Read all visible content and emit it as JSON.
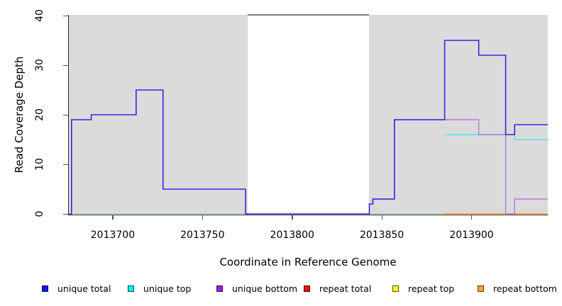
{
  "chart_data": {
    "type": "line",
    "subtype": "step-coverage-plot",
    "title": "",
    "xlabel": "Coordinate in Reference Genome",
    "ylabel": "Read Coverage Depth",
    "xlim": [
      2013675.5,
      2013942.5
    ],
    "ylim": [
      0,
      40
    ],
    "x_ticks": [
      2013700,
      2013750,
      2013800,
      2013850,
      2013900
    ],
    "y_ticks": [
      0,
      10,
      20,
      30,
      40
    ],
    "grid": "off",
    "shaded_regions": [
      {
        "from": 2013675.5,
        "to": 2013775,
        "color": "#DBDBDB"
      },
      {
        "from": 2013843,
        "to": 2013942.5,
        "color": "#DBDBDB"
      }
    ],
    "gap_top_line": {
      "from": 2013775,
      "to": 2013843,
      "at_y": 40,
      "color": "#7A7A7A"
    },
    "series": [
      {
        "name": "baseline-overlap",
        "color": "#8FD98F",
        "width": 1.2,
        "steps": [
          [
            2013675.5,
            0
          ],
          [
            2013885,
            0
          ]
        ]
      },
      {
        "name": "repeat bottom",
        "color": "#FFA004",
        "width": 1.4,
        "steps": [
          [
            2013885,
            0
          ],
          [
            2013942.5,
            0
          ]
        ]
      },
      {
        "name": "unique top",
        "color": "#55E1E8",
        "width": 1.4,
        "steps": [
          [
            2013885,
            16
          ],
          [
            2013924,
            15
          ],
          [
            2013942.5,
            15
          ]
        ]
      },
      {
        "name": "unique bottom",
        "color": "#B678DE",
        "width": 1.4,
        "steps": [
          [
            2013843,
            2
          ],
          [
            2013845,
            3
          ],
          [
            2013857,
            19
          ],
          [
            2013904,
            16
          ],
          [
            2013919,
            0
          ],
          [
            2013924,
            3
          ],
          [
            2013942.5,
            3
          ]
        ]
      },
      {
        "name": "unique total",
        "color": "#3628E0",
        "width": 1.6,
        "steps": [
          [
            2013675.5,
            0
          ],
          [
            2013677,
            19
          ],
          [
            2013688,
            20
          ],
          [
            2013713,
            25
          ],
          [
            2013728,
            5
          ],
          [
            2013774,
            0
          ],
          [
            2013843,
            2
          ],
          [
            2013845,
            3
          ],
          [
            2013857,
            19
          ],
          [
            2013885,
            35
          ],
          [
            2013904,
            32
          ],
          [
            2013919,
            16
          ],
          [
            2013924,
            18
          ],
          [
            2013942.5,
            18
          ]
        ]
      }
    ],
    "legend_position": "bottom",
    "legend": [
      {
        "label": "unique total",
        "color": "#1414EE"
      },
      {
        "label": "unique top",
        "color": "#00EEEE"
      },
      {
        "label": "unique bottom",
        "color": "#A21FE8"
      },
      {
        "label": "repeat total",
        "color": "#EE1111"
      },
      {
        "label": "repeat top",
        "color": "#FDFD00"
      },
      {
        "label": "repeat bottom",
        "color": "#FFA520"
      }
    ]
  }
}
